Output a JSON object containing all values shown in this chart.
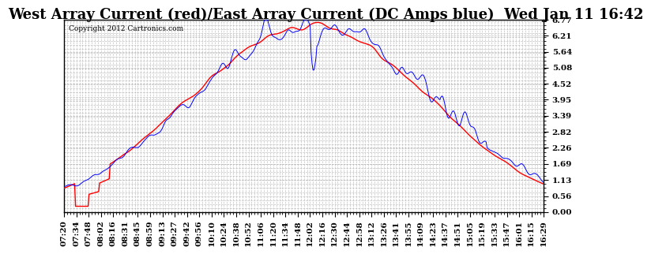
{
  "title": "West Array Current (red)/East Array Current (DC Amps blue)  Wed Jan 11 16:42",
  "copyright": "Copyright 2012 Cartronics.com",
  "yticks": [
    0.0,
    0.56,
    1.13,
    1.69,
    2.26,
    2.82,
    3.39,
    3.95,
    4.52,
    5.08,
    5.64,
    6.21,
    6.77
  ],
  "ylim": [
    0.0,
    6.77
  ],
  "xtick_labels": [
    "07:20",
    "07:34",
    "07:48",
    "08:02",
    "08:16",
    "08:31",
    "08:45",
    "08:59",
    "09:13",
    "09:27",
    "09:42",
    "09:56",
    "10:10",
    "10:24",
    "10:38",
    "10:52",
    "11:06",
    "11:20",
    "11:34",
    "11:48",
    "12:02",
    "12:16",
    "12:30",
    "12:44",
    "12:58",
    "13:12",
    "13:26",
    "13:41",
    "13:55",
    "14:09",
    "14:23",
    "14:37",
    "14:51",
    "15:05",
    "15:19",
    "15:33",
    "15:47",
    "16:01",
    "16:15",
    "16:29"
  ],
  "background_color": "#ffffff",
  "plot_bg_color": "#ffffff",
  "grid_color": "#aaaaaa",
  "red_color": "#ff0000",
  "blue_color": "#0000ff",
  "title_fontsize": 13,
  "tick_fontsize": 7.5
}
